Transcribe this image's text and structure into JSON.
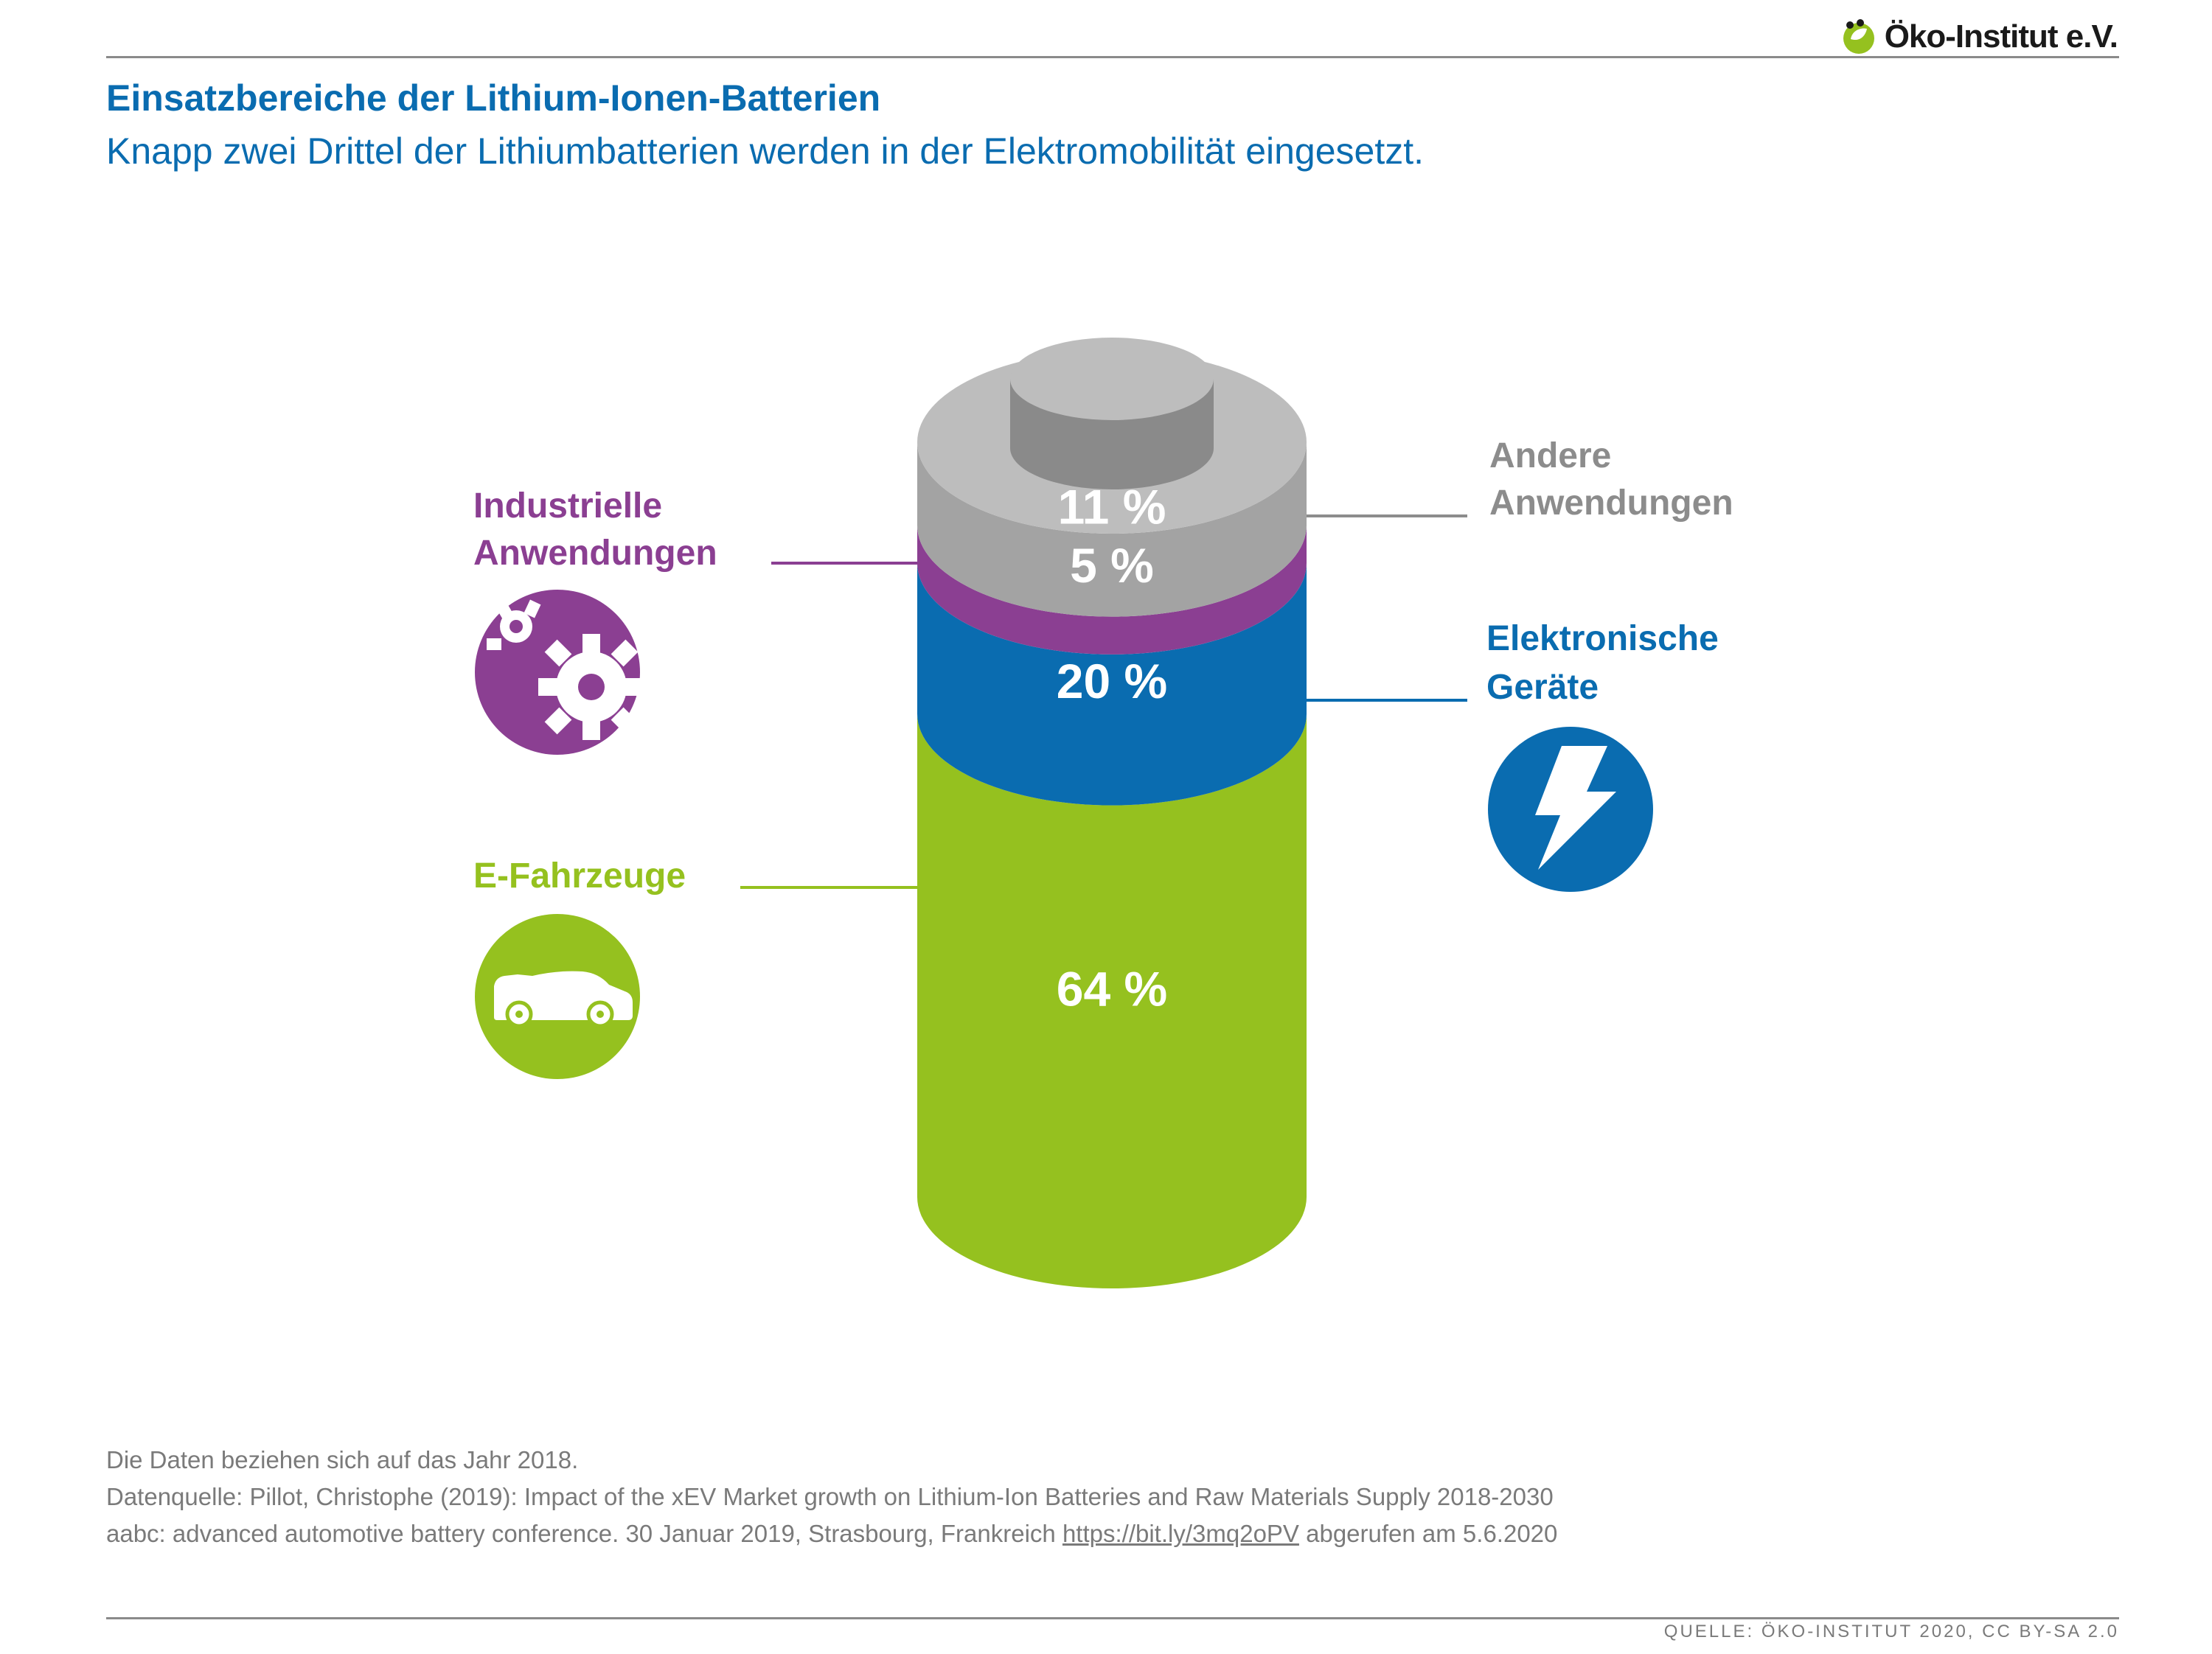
{
  "header": {
    "logo_text": "Öko-Institut e.V.",
    "logo_icon": "leaf-circle-icon",
    "title": "Einsatzbereiche der Lithium-Ionen-Batterien",
    "subtitle": "Knapp zwei Drittel der Lithiumbatterien werden in der Elektromobilität eingesetzt."
  },
  "chart_data": {
    "type": "stacked-cylinder",
    "title": "Einsatzbereiche der Lithium-Ionen-Batterien",
    "unit": "%",
    "series": [
      {
        "name": "E-Fahrzeuge",
        "value": 64,
        "label": "64 %",
        "color": "#95c11f",
        "icon": "car-icon"
      },
      {
        "name": "Elektronische Geräte",
        "value": 20,
        "label": "20 %",
        "color": "#0a6cb0",
        "icon": "lightning-icon"
      },
      {
        "name": "Industrielle Anwendungen",
        "value": 5,
        "label": "5 %",
        "color": "#8b3f92",
        "icon": "gears-icon"
      },
      {
        "name": "Andere Anwendungen",
        "value": 11,
        "label": "11 %",
        "color": "#a3a3a3",
        "icon": ""
      }
    ]
  },
  "callouts": {
    "industrie": {
      "line1": "Industrielle",
      "line2": "Anwendungen",
      "color": "#8b3f92"
    },
    "andere": {
      "line1": "Andere",
      "line2": "Anwendungen",
      "color": "#8c8c8c"
    },
    "elektronik": {
      "line1": "Elektronische",
      "line2": "Geräte",
      "color": "#0a6cb0"
    },
    "efahrzeuge": {
      "line1": "E-Fahrzeuge",
      "color": "#95c11f"
    }
  },
  "footer": {
    "note": "Die Daten beziehen sich auf das Jahr 2018.",
    "source_line1": "Datenquelle: Pillot, Christophe (2019): Impact of the xEV Market growth on Lithium-Ion Batteries and Raw Materials Supply 2018-2030",
    "source_line2_prefix": "aabc: advanced automotive battery conference. 30 Januar 2019, Strasbourg, Frankreich ",
    "source_link": "https://bit.ly/3mq2oPV",
    "source_line2_suffix": " abgerufen am 5.6.2020",
    "credit": "QUELLE: ÖKO-INSTITUT 2020, CC BY-SA 2.0"
  }
}
